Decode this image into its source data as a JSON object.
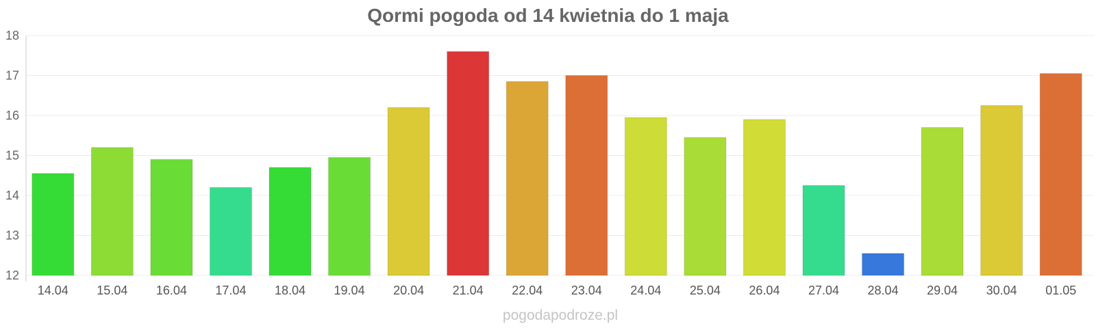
{
  "chart_data": {
    "type": "bar",
    "title": "Qormi pogoda od 14 kwietnia do 1 maja",
    "xlabel": "",
    "ylabel": "",
    "ylim": [
      12,
      18
    ],
    "yticks": [
      12,
      13,
      14,
      15,
      16,
      17,
      18
    ],
    "grid": true,
    "legend": "none",
    "categories": [
      "14.04",
      "15.04",
      "16.04",
      "17.04",
      "18.04",
      "19.04",
      "20.04",
      "21.04",
      "22.04",
      "23.04",
      "24.04",
      "25.04",
      "26.04",
      "27.04",
      "28.04",
      "29.04",
      "30.04",
      "01.05"
    ],
    "values": [
      14.55,
      15.2,
      14.9,
      14.2,
      14.7,
      14.95,
      16.2,
      17.6,
      16.85,
      17.0,
      15.95,
      15.45,
      15.9,
      14.25,
      12.55,
      15.7,
      16.25,
      17.05
    ],
    "colors": [
      "#36dc36",
      "#8ddc36",
      "#6adc36",
      "#36dc8d",
      "#36dc36",
      "#6adc36",
      "#dcc936",
      "#dc3636",
      "#dca636",
      "#dc6f36",
      "#cddc36",
      "#a9dc36",
      "#d1dc36",
      "#36dc8d",
      "#3678dc",
      "#a9dc36",
      "#dcc936",
      "#dc6f36"
    ]
  },
  "watermark": "pogodapodroze.pl"
}
